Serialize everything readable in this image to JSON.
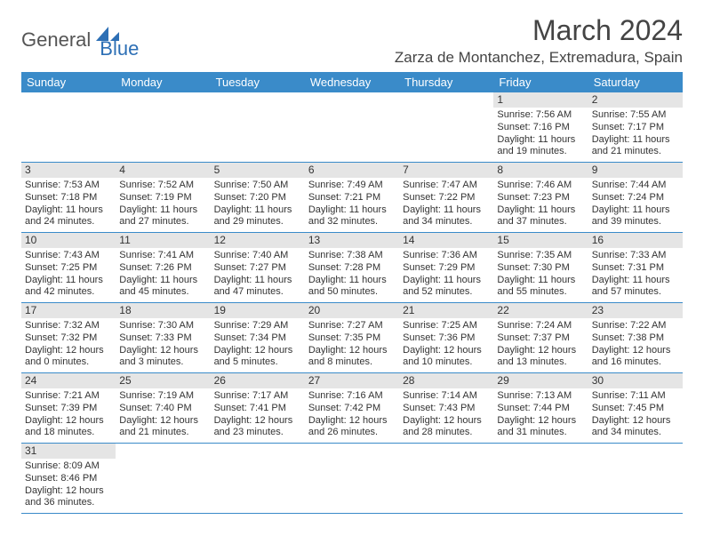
{
  "brand": {
    "part1": "General",
    "part2": "Blue",
    "shape_color": "#2d6fb5"
  },
  "title": "March 2024",
  "location": "Zarza de Montanchez, Extremadura, Spain",
  "colors": {
    "header_bg": "#3a8bc9",
    "daybar_bg": "#e5e5e5",
    "rule": "#3a8bc9"
  },
  "day_headers": [
    "Sunday",
    "Monday",
    "Tuesday",
    "Wednesday",
    "Thursday",
    "Friday",
    "Saturday"
  ],
  "weeks": [
    [
      null,
      null,
      null,
      null,
      null,
      {
        "n": "1",
        "sunrise": "7:56 AM",
        "sunset": "7:16 PM",
        "dayh": "11",
        "daym": "19"
      },
      {
        "n": "2",
        "sunrise": "7:55 AM",
        "sunset": "7:17 PM",
        "dayh": "11",
        "daym": "21"
      }
    ],
    [
      {
        "n": "3",
        "sunrise": "7:53 AM",
        "sunset": "7:18 PM",
        "dayh": "11",
        "daym": "24"
      },
      {
        "n": "4",
        "sunrise": "7:52 AM",
        "sunset": "7:19 PM",
        "dayh": "11",
        "daym": "27"
      },
      {
        "n": "5",
        "sunrise": "7:50 AM",
        "sunset": "7:20 PM",
        "dayh": "11",
        "daym": "29"
      },
      {
        "n": "6",
        "sunrise": "7:49 AM",
        "sunset": "7:21 PM",
        "dayh": "11",
        "daym": "32"
      },
      {
        "n": "7",
        "sunrise": "7:47 AM",
        "sunset": "7:22 PM",
        "dayh": "11",
        "daym": "34"
      },
      {
        "n": "8",
        "sunrise": "7:46 AM",
        "sunset": "7:23 PM",
        "dayh": "11",
        "daym": "37"
      },
      {
        "n": "9",
        "sunrise": "7:44 AM",
        "sunset": "7:24 PM",
        "dayh": "11",
        "daym": "39"
      }
    ],
    [
      {
        "n": "10",
        "sunrise": "7:43 AM",
        "sunset": "7:25 PM",
        "dayh": "11",
        "daym": "42"
      },
      {
        "n": "11",
        "sunrise": "7:41 AM",
        "sunset": "7:26 PM",
        "dayh": "11",
        "daym": "45"
      },
      {
        "n": "12",
        "sunrise": "7:40 AM",
        "sunset": "7:27 PM",
        "dayh": "11",
        "daym": "47"
      },
      {
        "n": "13",
        "sunrise": "7:38 AM",
        "sunset": "7:28 PM",
        "dayh": "11",
        "daym": "50"
      },
      {
        "n": "14",
        "sunrise": "7:36 AM",
        "sunset": "7:29 PM",
        "dayh": "11",
        "daym": "52"
      },
      {
        "n": "15",
        "sunrise": "7:35 AM",
        "sunset": "7:30 PM",
        "dayh": "11",
        "daym": "55"
      },
      {
        "n": "16",
        "sunrise": "7:33 AM",
        "sunset": "7:31 PM",
        "dayh": "11",
        "daym": "57"
      }
    ],
    [
      {
        "n": "17",
        "sunrise": "7:32 AM",
        "sunset": "7:32 PM",
        "dayh": "12",
        "daym": "0"
      },
      {
        "n": "18",
        "sunrise": "7:30 AM",
        "sunset": "7:33 PM",
        "dayh": "12",
        "daym": "3"
      },
      {
        "n": "19",
        "sunrise": "7:29 AM",
        "sunset": "7:34 PM",
        "dayh": "12",
        "daym": "5"
      },
      {
        "n": "20",
        "sunrise": "7:27 AM",
        "sunset": "7:35 PM",
        "dayh": "12",
        "daym": "8"
      },
      {
        "n": "21",
        "sunrise": "7:25 AM",
        "sunset": "7:36 PM",
        "dayh": "12",
        "daym": "10"
      },
      {
        "n": "22",
        "sunrise": "7:24 AM",
        "sunset": "7:37 PM",
        "dayh": "12",
        "daym": "13"
      },
      {
        "n": "23",
        "sunrise": "7:22 AM",
        "sunset": "7:38 PM",
        "dayh": "12",
        "daym": "16"
      }
    ],
    [
      {
        "n": "24",
        "sunrise": "7:21 AM",
        "sunset": "7:39 PM",
        "dayh": "12",
        "daym": "18"
      },
      {
        "n": "25",
        "sunrise": "7:19 AM",
        "sunset": "7:40 PM",
        "dayh": "12",
        "daym": "21"
      },
      {
        "n": "26",
        "sunrise": "7:17 AM",
        "sunset": "7:41 PM",
        "dayh": "12",
        "daym": "23"
      },
      {
        "n": "27",
        "sunrise": "7:16 AM",
        "sunset": "7:42 PM",
        "dayh": "12",
        "daym": "26"
      },
      {
        "n": "28",
        "sunrise": "7:14 AM",
        "sunset": "7:43 PM",
        "dayh": "12",
        "daym": "28"
      },
      {
        "n": "29",
        "sunrise": "7:13 AM",
        "sunset": "7:44 PM",
        "dayh": "12",
        "daym": "31"
      },
      {
        "n": "30",
        "sunrise": "7:11 AM",
        "sunset": "7:45 PM",
        "dayh": "12",
        "daym": "34"
      }
    ],
    [
      {
        "n": "31",
        "sunrise": "8:09 AM",
        "sunset": "8:46 PM",
        "dayh": "12",
        "daym": "36"
      },
      null,
      null,
      null,
      null,
      null,
      null
    ]
  ],
  "labels": {
    "sunrise": "Sunrise:",
    "sunset": "Sunset:",
    "daylight": "Daylight:",
    "hours": "hours",
    "and": "and",
    "minutes": "minutes."
  }
}
